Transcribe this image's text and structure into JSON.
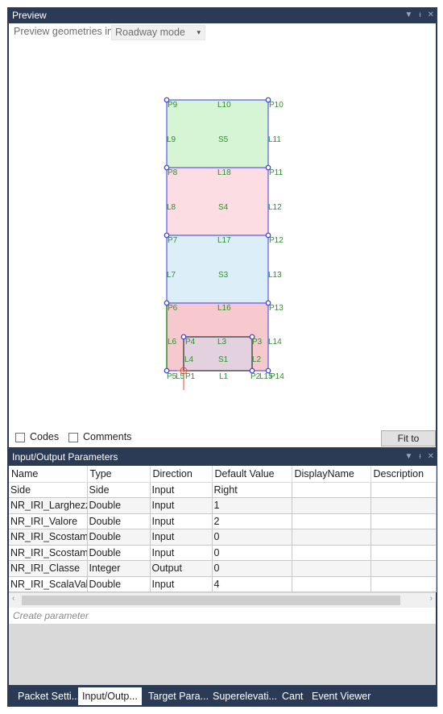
{
  "preview_panel": {
    "title": "Preview",
    "mode_label": "Preview geometries in",
    "mode_value": "Roadway mode",
    "codes_label": "Codes",
    "comments_label": "Comments",
    "fit_button": "Fit to Screen",
    "colors": {
      "s5": "#d5f5d5",
      "s4": "#fbdde3",
      "s3": "#dceef7",
      "s2": "#f6c9ce",
      "s1": "#e3d1e0",
      "outline": "#3a3ae8",
      "label": "#2f8f2f"
    },
    "labels": {
      "p9": "P9",
      "l10": "L10",
      "p10": "P10",
      "l9": "L9",
      "s5": "S5",
      "l11": "L11",
      "p8": "P8",
      "l18": "L18",
      "p11": "P11",
      "l8": "L8",
      "s4": "S4",
      "l12": "L12",
      "p7": "P7",
      "l17": "L17",
      "p12": "P12",
      "l7": "L7",
      "s3": "S3",
      "l13": "L13",
      "p6": "P6",
      "l16": "L16",
      "p13": "P13",
      "l6": "L6",
      "p4": "P4",
      "l3": "L3",
      "p3": "P3",
      "l14": "L14",
      "l4": "L4",
      "s1": "S1",
      "l2": "L2",
      "p5": "P5",
      "l5": "L5",
      "p1": "P1",
      "l1": "L1",
      "p2": "P2",
      "l15": "L15",
      "p14": "P14"
    }
  },
  "io_panel": {
    "title": "Input/Output Parameters",
    "columns": [
      "Name",
      "Type",
      "Direction",
      "Default Value",
      "DisplayName",
      "Description"
    ],
    "rows": [
      {
        "name": "Side",
        "type": "Side",
        "direction": "Input",
        "default": "Right",
        "display": "",
        "description": ""
      },
      {
        "name": "NR_IRI_Larghezza",
        "type": "Double",
        "direction": "Input",
        "default": "1",
        "display": "",
        "description": ""
      },
      {
        "name": "NR_IRI_Valore",
        "type": "Double",
        "direction": "Input",
        "default": "2",
        "display": "",
        "description": ""
      },
      {
        "name": "NR_IRI_Scostamer",
        "type": "Double",
        "direction": "Input",
        "default": "0",
        "display": "",
        "description": ""
      },
      {
        "name": "NR_IRI_Scostamer",
        "type": "Double",
        "direction": "Input",
        "default": "0",
        "display": "",
        "description": ""
      },
      {
        "name": "NR_IRI_Classe",
        "type": "Integer",
        "direction": "Output",
        "default": "0",
        "display": "",
        "description": ""
      },
      {
        "name": "NR_IRI_ScalaValori",
        "type": "Double",
        "direction": "Input",
        "default": "4",
        "display": "",
        "description": ""
      }
    ],
    "create_placeholder": "Create parameter"
  },
  "tabs": [
    {
      "label": "Packet Setti..."
    },
    {
      "label": "Input/Outp...",
      "active": true
    },
    {
      "label": "Target Para..."
    },
    {
      "label": "Superelevati..."
    },
    {
      "label": "Cant"
    },
    {
      "label": "Event Viewer"
    }
  ]
}
